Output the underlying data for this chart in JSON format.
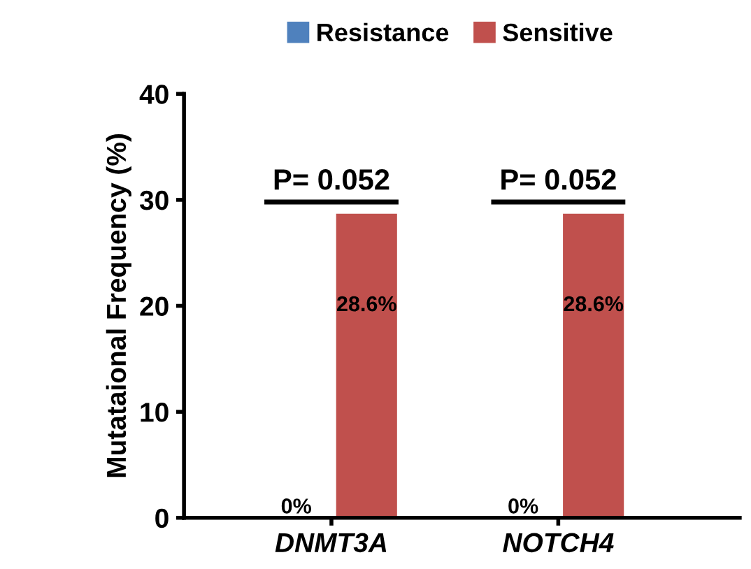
{
  "chart_data": {
    "type": "bar",
    "categories": [
      "DNMT3A",
      "NOTCH4"
    ],
    "series": [
      {
        "name": "Resistance",
        "color": "#4f81bd",
        "values": [
          0,
          0
        ],
        "value_labels": [
          "0%",
          "0%"
        ]
      },
      {
        "name": "Sensitive",
        "color": "#c0504d",
        "values": [
          28.6,
          28.6
        ],
        "value_labels": [
          "28.6%",
          "28.6%"
        ]
      }
    ],
    "ylabel": "Mutataional Frequency (%)",
    "ylim": [
      0,
      40
    ],
    "yticks": [
      0,
      10,
      20,
      30,
      40
    ],
    "annotations": [
      "P= 0.052",
      "P= 0.052"
    ],
    "grid": false,
    "legend": "top"
  }
}
